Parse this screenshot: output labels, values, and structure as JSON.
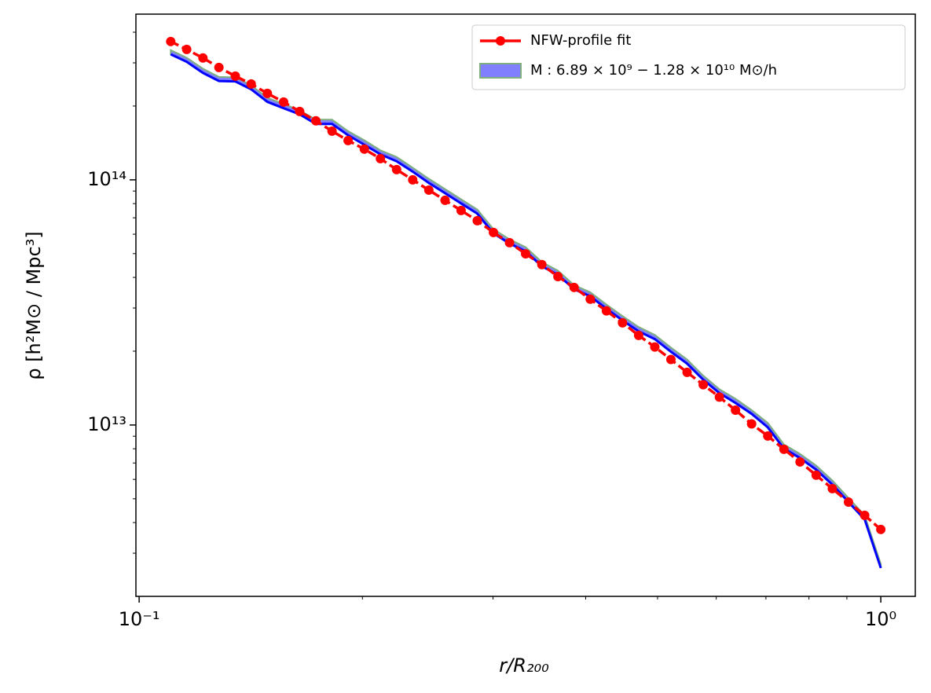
{
  "chart_data": {
    "type": "line",
    "xlabel": "r/R₂₀₀",
    "ylabel": "ρ [h²M⊙ / Mpc³]",
    "xscale": "log",
    "yscale": "log",
    "xlim": [
      0.099,
      1.113
    ],
    "ylim": [
      2000000000000.0,
      474000000000000.0
    ],
    "xticks": [
      {
        "value": 0.1,
        "label": "10⁻¹"
      },
      {
        "value": 1,
        "label": "10⁰"
      }
    ],
    "yticks": [
      {
        "value": 10000000000000.0,
        "label": "10¹³"
      },
      {
        "value": 100000000000000.0,
        "label": "10¹⁴"
      }
    ],
    "xminorticks": [
      0.2,
      0.3,
      0.4,
      0.5,
      0.6,
      0.7,
      0.8,
      0.9
    ],
    "yminorticks": [
      3000000000000.0,
      4000000000000.0,
      5000000000000.0,
      6000000000000.0,
      7000000000000.0,
      8000000000000.0,
      9000000000000.0,
      20000000000000.0,
      30000000000000.0,
      40000000000000.0,
      50000000000000.0,
      60000000000000.0,
      70000000000000.0,
      80000000000000.0,
      90000000000000.0,
      200000000000000.0,
      300000000000000.0,
      400000000000000.0
    ],
    "legend": "upper right",
    "x": [
      0.1103,
      0.1159,
      0.1219,
      0.1281,
      0.1348,
      0.1416,
      0.1489,
      0.1566,
      0.1646,
      0.1731,
      0.182,
      0.1913,
      0.2012,
      0.2115,
      0.2224,
      0.2338,
      0.2458,
      0.2585,
      0.2717,
      0.2857,
      0.3004,
      0.3158,
      0.332,
      0.3491,
      0.367,
      0.3859,
      0.4057,
      0.4266,
      0.4485,
      0.4715,
      0.4958,
      0.5212,
      0.548,
      0.5762,
      0.6058,
      0.6369,
      0.6696,
      0.704,
      0.7402,
      0.7782,
      0.8182,
      0.8603,
      0.9045,
      0.9512,
      1.0
    ],
    "series": [
      {
        "name": "NFW-profile fit",
        "kind": "dashed-markers",
        "color": "#ff0000",
        "values": [
          366600000000000.0,
          340400000000000.0,
          314000000000000.0,
          287300000000000.0,
          264900000000000.0,
          246000000000000.0,
          225200000000000.0,
          207600000000000.0,
          190000000000000.0,
          174000000000000.0,
          158000000000000.0,
          144600000000000.0,
          133400000000000.0,
          122000000000000.0,
          110100000000000.0,
          100000000000000.0,
          90800000000000.0,
          82500000000000.0,
          75000000000000.0,
          68100000000000.0,
          61000000000000.0,
          55400000000000.0,
          49900000000000.0,
          45100000000000.0,
          40300000000000.0,
          36400000000000.0,
          32600000000000.0,
          29200000000000.0,
          26100000000000.0,
          23200000000000.0,
          20800000000000.0,
          18500000000000.0,
          16400000000000.0,
          14600000000000.0,
          13000000000000.0,
          11500000000000.0,
          10100000000000.0,
          9020000000000.0,
          7960000000000.0,
          7070000000000.0,
          6240000000000.0,
          5500000000000.0,
          4850000000000.0,
          4280000000000.0,
          3750000000000.0
        ]
      },
      {
        "name": "M : 6.89 × 10⁹ − 1.28 × 10¹⁰ M⊙/h",
        "kind": "band",
        "color": "#8080ff",
        "edgecolor": "#80b080",
        "lower": [
          325000000000000.0,
          303000000000000.0,
          273000000000000.0,
          253000000000000.0,
          252000000000000.0,
          234000000000000.0,
          208000000000000.0,
          196000000000000.0,
          185000000000000.0,
          169000000000000.0,
          169000000000000.0,
          152000000000000.0,
          139000000000000.0,
          127000000000000.0,
          119000000000000.0,
          108000000000000.0,
          97100000000000.0,
          88200000000000.0,
          80100000000000.0,
          72800000000000.0,
          60500000000000.0,
          55000000000000.0,
          51100000000000.0,
          44400000000000.0,
          41000000000000.0,
          35800000000000.0,
          33500000000000.0,
          29800000000000.0,
          26700000000000.0,
          24100000000000.0,
          22400000000000.0,
          19900000000000.0,
          17800000000000.0,
          15300000000000.0,
          13500000000000.0,
          12300000000000.0,
          11100000000000.0,
          9780000000000.0,
          8010000000000.0,
          7330000000000.0,
          6570000000000.0,
          5710000000000.0,
          4850000000000.0,
          4120000000000.0,
          2610000000000.0
        ],
        "upper": [
          338000000000000.0,
          315000000000000.0,
          284000000000000.0,
          263000000000000.0,
          262000000000000.0,
          243000000000000.0,
          216000000000000.0,
          204000000000000.0,
          192000000000000.0,
          176000000000000.0,
          176000000000000.0,
          158000000000000.0,
          145000000000000.0,
          132000000000000.0,
          124000000000000.0,
          112000000000000.0,
          101000000000000.0,
          91700000000000.0,
          83300000000000.0,
          75700000000000.0,
          62900000000000.0,
          57200000000000.0,
          53100000000000.0,
          46200000000000.0,
          42600000000000.0,
          37200000000000.0,
          34800000000000.0,
          31000000000000.0,
          27800000000000.0,
          25100000000000.0,
          23300000000000.0,
          20700000000000.0,
          18500000000000.0,
          15900000000000.0,
          14000000000000.0,
          12800000000000.0,
          11500000000000.0,
          10200000000000.0,
          8330000000000.0,
          7620000000000.0,
          6830000000000.0,
          5940000000000.0,
          5040000000000.0,
          4280000000000.0,
          2710000000000.0
        ]
      },
      {
        "kind": "line",
        "color": "#0000ff",
        "values": [
          325000000000000.0,
          303000000000000.0,
          273000000000000.0,
          253000000000000.0,
          252000000000000.0,
          234000000000000.0,
          208000000000000.0,
          196000000000000.0,
          185000000000000.0,
          169000000000000.0,
          169000000000000.0,
          152000000000000.0,
          139000000000000.0,
          127000000000000.0,
          119000000000000.0,
          108000000000000.0,
          97100000000000.0,
          88200000000000.0,
          80100000000000.0,
          72800000000000.0,
          60500000000000.0,
          55000000000000.0,
          51100000000000.0,
          44400000000000.0,
          41000000000000.0,
          35800000000000.0,
          33500000000000.0,
          29800000000000.0,
          26700000000000.0,
          24100000000000.0,
          22400000000000.0,
          19900000000000.0,
          17800000000000.0,
          15300000000000.0,
          13500000000000.0,
          12300000000000.0,
          11100000000000.0,
          9780000000000.0,
          8010000000000.0,
          7330000000000.0,
          6570000000000.0,
          5710000000000.0,
          4850000000000.0,
          4120000000000.0,
          2610000000000.0
        ]
      }
    ]
  }
}
